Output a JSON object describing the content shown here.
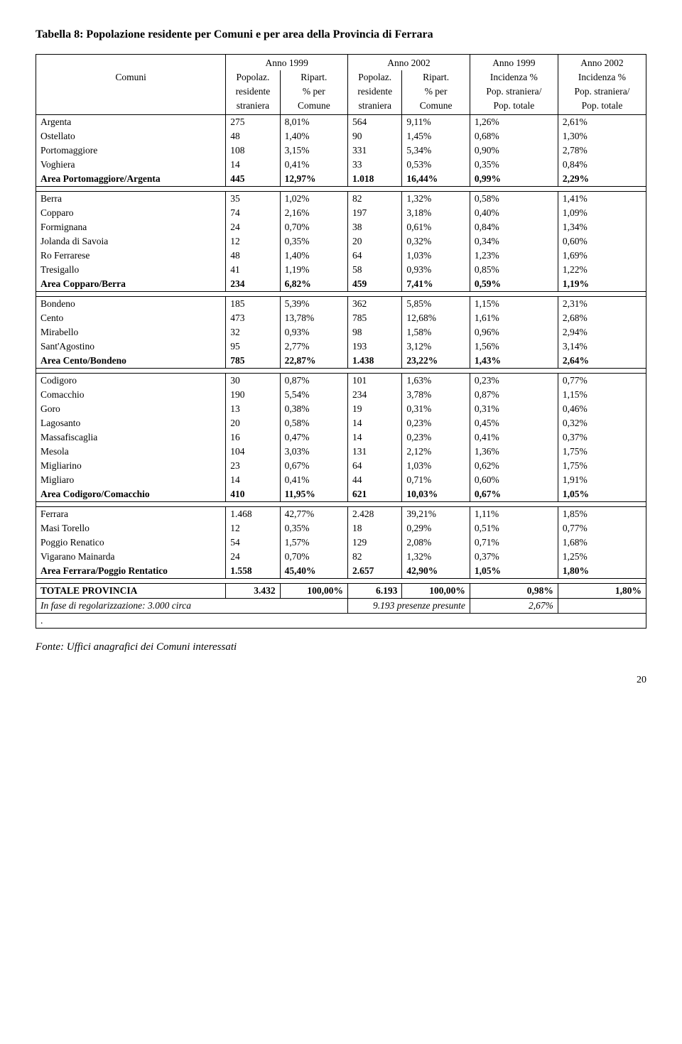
{
  "title": "Tabella 8: Popolazione residente per Comuni e per area della Provincia di Ferrara",
  "header": {
    "comuni": "Comuni",
    "y1999": "Anno 1999",
    "y2002": "Anno 2002",
    "pop": "Popolaz.",
    "res": "residente",
    "stran": "straniera",
    "rip": "Ripart.",
    "pper": "% per",
    "comune": "Comune",
    "inc": "Incidenza %",
    "popstr": "Pop. straniera/",
    "poptot": "Pop. totale"
  },
  "sections": [
    {
      "rows": [
        {
          "n": "Argenta",
          "a": "275",
          "b": "8,01%",
          "c": "564",
          "d": "9,11%",
          "e": "1,26%",
          "f": "2,61%"
        },
        {
          "n": "Ostellato",
          "a": "48",
          "b": "1,40%",
          "c": "90",
          "d": "1,45%",
          "e": "0,68%",
          "f": "1,30%"
        },
        {
          "n": "Portomaggiore",
          "a": "108",
          "b": "3,15%",
          "c": "331",
          "d": "5,34%",
          "e": "0,90%",
          "f": "2,78%"
        },
        {
          "n": "Voghiera",
          "a": "14",
          "b": "0,41%",
          "c": "33",
          "d": "0,53%",
          "e": "0,35%",
          "f": "0,84%"
        }
      ],
      "subtotal": {
        "n": "Area Portomaggiore/Argenta",
        "a": "445",
        "b": "12,97%",
        "c": "1.018",
        "d": "16,44%",
        "e": "0,99%",
        "f": "2,29%"
      }
    },
    {
      "rows": [
        {
          "n": "Berra",
          "a": "35",
          "b": "1,02%",
          "c": "82",
          "d": "1,32%",
          "e": "0,58%",
          "f": "1,41%"
        },
        {
          "n": "Copparo",
          "a": "74",
          "b": "2,16%",
          "c": "197",
          "d": "3,18%",
          "e": "0,40%",
          "f": "1,09%"
        },
        {
          "n": "Formignana",
          "a": "24",
          "b": "0,70%",
          "c": "38",
          "d": "0,61%",
          "e": "0,84%",
          "f": "1,34%"
        },
        {
          "n": "Jolanda di Savoia",
          "a": "12",
          "b": "0,35%",
          "c": "20",
          "d": "0,32%",
          "e": "0,34%",
          "f": "0,60%"
        },
        {
          "n": "Ro Ferrarese",
          "a": "48",
          "b": "1,40%",
          "c": "64",
          "d": "1,03%",
          "e": "1,23%",
          "f": "1,69%"
        },
        {
          "n": "Tresigallo",
          "a": "41",
          "b": "1,19%",
          "c": "58",
          "d": "0,93%",
          "e": "0,85%",
          "f": "1,22%"
        }
      ],
      "subtotal": {
        "n": "Area Copparo/Berra",
        "a": "234",
        "b": "6,82%",
        "c": "459",
        "d": "7,41%",
        "e": "0,59%",
        "f": "1,19%"
      }
    },
    {
      "rows": [
        {
          "n": "Bondeno",
          "a": "185",
          "b": "5,39%",
          "c": "362",
          "d": "5,85%",
          "e": "1,15%",
          "f": "2,31%"
        },
        {
          "n": "Cento",
          "a": "473",
          "b": "13,78%",
          "c": "785",
          "d": "12,68%",
          "e": "1,61%",
          "f": "2,68%"
        },
        {
          "n": "Mirabello",
          "a": "32",
          "b": "0,93%",
          "c": "98",
          "d": "1,58%",
          "e": "0,96%",
          "f": "2,94%"
        },
        {
          "n": "Sant'Agostino",
          "a": "95",
          "b": "2,77%",
          "c": "193",
          "d": "3,12%",
          "e": "1,56%",
          "f": "3,14%"
        }
      ],
      "subtotal": {
        "n": "Area Cento/Bondeno",
        "a": "785",
        "b": "22,87%",
        "c": "1.438",
        "d": "23,22%",
        "e": "1,43%",
        "f": "2,64%"
      }
    },
    {
      "rows": [
        {
          "n": "Codigoro",
          "a": "30",
          "b": "0,87%",
          "c": "101",
          "d": "1,63%",
          "e": "0,23%",
          "f": "0,77%"
        },
        {
          "n": "Comacchio",
          "a": "190",
          "b": "5,54%",
          "c": "234",
          "d": "3,78%",
          "e": "0,87%",
          "f": "1,15%"
        },
        {
          "n": "Goro",
          "a": "13",
          "b": "0,38%",
          "c": "19",
          "d": "0,31%",
          "e": "0,31%",
          "f": "0,46%"
        },
        {
          "n": "Lagosanto",
          "a": "20",
          "b": "0,58%",
          "c": "14",
          "d": "0,23%",
          "e": "0,45%",
          "f": "0,32%"
        },
        {
          "n": "Massafiscaglia",
          "a": "16",
          "b": "0,47%",
          "c": "14",
          "d": "0,23%",
          "e": "0,41%",
          "f": "0,37%"
        },
        {
          "n": "Mesola",
          "a": "104",
          "b": "3,03%",
          "c": "131",
          "d": "2,12%",
          "e": "1,36%",
          "f": "1,75%"
        },
        {
          "n": "Migliarino",
          "a": "23",
          "b": "0,67%",
          "c": "64",
          "d": "1,03%",
          "e": "0,62%",
          "f": "1,75%"
        },
        {
          "n": "Migliaro",
          "a": "14",
          "b": "0,41%",
          "c": "44",
          "d": "0,71%",
          "e": "0,60%",
          "f": "1,91%"
        }
      ],
      "subtotal": {
        "n": "Area Codigoro/Comacchio",
        "a": "410",
        "b": "11,95%",
        "c": "621",
        "d": "10,03%",
        "e": "0,67%",
        "f": "1,05%"
      }
    },
    {
      "rows": [
        {
          "n": "Ferrara",
          "a": "1.468",
          "b": "42,77%",
          "c": "2.428",
          "d": "39,21%",
          "e": "1,11%",
          "f": "1,85%"
        },
        {
          "n": "Masi Torello",
          "a": "12",
          "b": "0,35%",
          "c": "18",
          "d": "0,29%",
          "e": "0,51%",
          "f": "0,77%"
        },
        {
          "n": "Poggio Renatico",
          "a": "54",
          "b": "1,57%",
          "c": "129",
          "d": "2,08%",
          "e": "0,71%",
          "f": "1,68%"
        },
        {
          "n": "Vigarano Mainarda",
          "a": "24",
          "b": "0,70%",
          "c": "82",
          "d": "1,32%",
          "e": "0,37%",
          "f": "1,25%"
        }
      ],
      "subtotal": {
        "n": "Area Ferrara/Poggio Rentatico",
        "a": "1.558",
        "b": "45,40%",
        "c": "2.657",
        "d": "42,90%",
        "e": "1,05%",
        "f": "1,80%"
      }
    }
  ],
  "total": {
    "n": "TOTALE PROVINCIA",
    "a": "3.432",
    "b": "100,00%",
    "c": "6.193",
    "d": "100,00%",
    "e": "0,98%",
    "f": "1,80%"
  },
  "note": {
    "left": "In fase di regolarizzazione: 3.000 circa",
    "mid": "9.193 presenze presunte",
    "right": "2,67%",
    "dot": "."
  },
  "source": "Fonte: Uffici anagrafici dei Comuni interessati",
  "page": "20"
}
